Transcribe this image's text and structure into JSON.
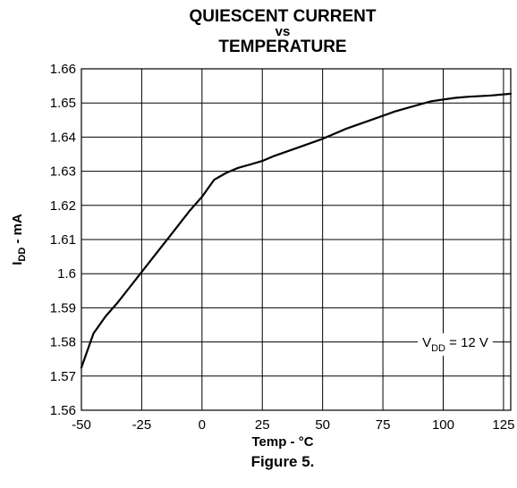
{
  "chart_data": {
    "type": "line",
    "title": [
      "QUIESCENT CURRENT",
      "vs",
      "TEMPERATURE"
    ],
    "xlabel": "Temp - °C",
    "ylabel": {
      "main": "I",
      "sub": "DD",
      "rest": " - mA"
    },
    "caption": "Figure 5.",
    "xlim": [
      -50,
      128
    ],
    "ylim": [
      1.56,
      1.66
    ],
    "x_ticks": [
      -50,
      -25,
      0,
      25,
      50,
      75,
      100,
      125
    ],
    "x_tick_labels": [
      "-50",
      "-25",
      "0",
      "25",
      "50",
      "75",
      "100",
      "125"
    ],
    "y_ticks": [
      1.56,
      1.57,
      1.58,
      1.59,
      1.6,
      1.61,
      1.62,
      1.63,
      1.64,
      1.65,
      1.66
    ],
    "y_tick_labels": [
      "1.56",
      "1.57",
      "1.58",
      "1.59",
      "1.6",
      "1.61",
      "1.62",
      "1.63",
      "1.64",
      "1.65",
      "1.66"
    ],
    "grid": true,
    "annotation": {
      "main": "V",
      "sub": "DD",
      "rest": " = 12 V"
    },
    "series": [
      {
        "x": [
          -50,
          -45,
          -40,
          -35,
          -30,
          -25,
          -20,
          -15,
          -10,
          -5,
          0,
          5,
          10,
          15,
          20,
          25,
          30,
          40,
          50,
          60,
          70,
          80,
          90,
          95,
          100,
          105,
          110,
          120,
          128
        ],
        "y": [
          1.5725,
          1.5825,
          1.5875,
          1.5915,
          1.596,
          1.6005,
          1.605,
          1.6095,
          1.614,
          1.6185,
          1.6225,
          1.6275,
          1.6295,
          1.631,
          1.632,
          1.633,
          1.6345,
          1.637,
          1.6395,
          1.6425,
          1.645,
          1.6475,
          1.6495,
          1.6505,
          1.651,
          1.6515,
          1.6518,
          1.6522,
          1.6527
        ]
      }
    ],
    "line_color": "#000000",
    "grid_color": "#000000"
  }
}
